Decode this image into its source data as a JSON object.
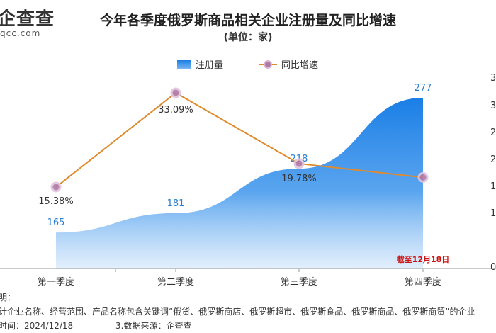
{
  "logo": {
    "name": "企查查",
    "sub": "qcc.com"
  },
  "chart_data": {
    "type": "area+line",
    "title": "今年各季度俄罗斯商品相关企业注册量及同比增速",
    "subtitle": "(单位：家)",
    "categories": [
      "第一季度",
      "第二季度",
      "第三季度",
      "第四季度"
    ],
    "series": [
      {
        "name": "注册量",
        "type": "area",
        "values": [
          165,
          181,
          218,
          277
        ],
        "labels": [
          "165",
          "181",
          "218",
          "277"
        ],
        "color": "#1a7ee6"
      },
      {
        "name": "同比增速",
        "type": "line",
        "values": [
          15.38,
          33.09,
          19.78,
          17.2
        ],
        "labels": [
          "15.38%",
          "33.09%",
          "19.78%",
          ""
        ],
        "color": "#e08a2e"
      }
    ],
    "y_right_ticks": [
      "3",
      "3",
      "2",
      "2",
      "1",
      "1",
      "",
      "0"
    ],
    "ylim_count": [
      0,
      300
    ],
    "ylim_growth": [
      0,
      40
    ],
    "annotation": "截至12月18日",
    "annotation_color": "#cc1111",
    "legend_position": "top-center"
  },
  "notes": {
    "line1": "明：",
    "line2": "计企业名称、经营范围、产品名称包含关键词“俄货、俄罗斯商店、俄罗斯超市、俄罗斯食品、俄罗斯商品、俄罗斯商贸”的企业",
    "line3a": "时间：2024/12/18",
    "line3b": "3.数据来源：企查查"
  }
}
